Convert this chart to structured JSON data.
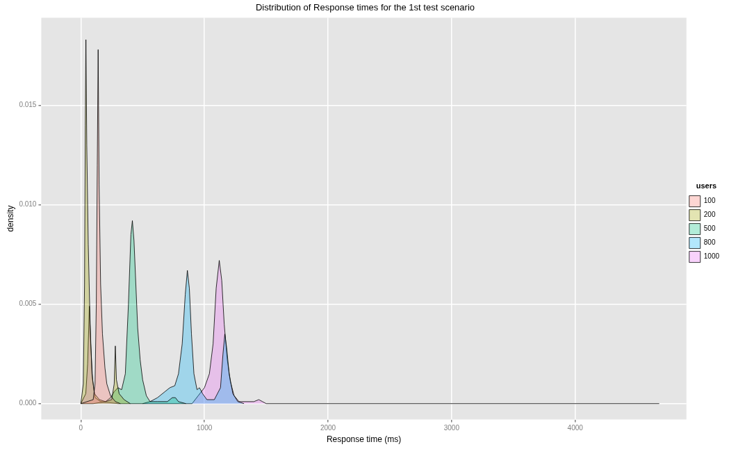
{
  "chart_data": {
    "type": "area",
    "title": "Distribution of Response times for the 1st test scenario",
    "xlabel": "Response time (ms)",
    "ylabel": "density",
    "legend_title": "users",
    "legend": "right",
    "xlim": [
      -320,
      4900
    ],
    "xticks": [
      0,
      1000,
      2000,
      3000,
      4000
    ],
    "ylim": [
      -0.0008,
      0.0194
    ],
    "yticks": [
      {
        "value": 0,
        "label": "0.000"
      },
      {
        "value": 0.005,
        "label": "0.005"
      },
      {
        "value": 0.01,
        "label": "0.010"
      },
      {
        "value": 0.015,
        "label": "0.015"
      }
    ],
    "grid": true,
    "series": [
      {
        "name": "100",
        "color": "#f8766d",
        "x": [
          0,
          100,
          115,
          125,
          133,
          140,
          148,
          160,
          175,
          195,
          210,
          240,
          280,
          320
        ],
        "values": [
          0,
          0.0002,
          0.001,
          0.005,
          0.012,
          0.0178,
          0.011,
          0.006,
          0.0035,
          0.0018,
          0.001,
          0.0004,
          0.0001,
          0
        ]
      },
      {
        "name": "200",
        "color": "#a3a500",
        "x": [
          0,
          20,
          30,
          36,
          41,
          48,
          60,
          75,
          90,
          110,
          150,
          200,
          250,
          270,
          279,
          288,
          310,
          350,
          400
        ],
        "values": [
          0,
          0.001,
          0.006,
          0.014,
          0.0183,
          0.013,
          0.008,
          0.004,
          0.0015,
          0.0005,
          0.0002,
          0.0001,
          0.0002,
          0.001,
          0.0029,
          0.0012,
          0.0005,
          0.0002,
          0
        ]
      },
      {
        "name": "500",
        "color": "#00bf7d",
        "x": [
          0,
          100,
          200,
          240,
          270,
          300,
          330,
          360,
          385,
          405,
          417,
          430,
          445,
          460,
          480,
          500,
          530,
          560,
          620,
          700,
          740,
          765,
          790,
          850
        ],
        "values": [
          0,
          0,
          0.0001,
          0.0003,
          0.0006,
          0.0008,
          0.0007,
          0.0015,
          0.005,
          0.0085,
          0.0092,
          0.0082,
          0.006,
          0.0038,
          0.0022,
          0.0012,
          0.0004,
          0.0001,
          0.0001,
          0.0001,
          0.0003,
          0.0003,
          0.0001,
          0
        ]
      },
      {
        "name": "800",
        "color": "#00b0f6",
        "x": [
          500,
          560,
          620,
          680,
          720,
          760,
          790,
          820,
          845,
          862,
          878,
          895,
          915,
          940,
          960,
          985,
          1020,
          1080,
          1130,
          1150,
          1165,
          1180,
          1200,
          1230,
          1270,
          1320
        ],
        "values": [
          0,
          0.0001,
          0.0003,
          0.0006,
          0.0008,
          0.0009,
          0.0015,
          0.003,
          0.0055,
          0.0067,
          0.0058,
          0.0035,
          0.0015,
          0.0007,
          0.0008,
          0.0005,
          0.0002,
          0.0002,
          0.0008,
          0.0025,
          0.0035,
          0.0028,
          0.0015,
          0.0005,
          0.0001,
          0
        ]
      },
      {
        "name": "1000",
        "color": "#e76bf3",
        "x": [
          0,
          40,
          55,
          69,
          80,
          95,
          115,
          160,
          300,
          900,
          950,
          1000,
          1040,
          1070,
          1095,
          1120,
          1140,
          1160,
          1185,
          1210,
          1240,
          1280,
          1400,
          1440,
          1470,
          1500,
          4680
        ],
        "values": [
          0,
          0.0005,
          0.002,
          0.0049,
          0.003,
          0.0012,
          0.0003,
          0.0001,
          0,
          0,
          0.0004,
          0.0008,
          0.0015,
          0.003,
          0.0058,
          0.0072,
          0.0062,
          0.004,
          0.0022,
          0.0011,
          0.0004,
          0.0001,
          0.0001,
          0.0002,
          0.0001,
          0,
          0
        ]
      }
    ]
  }
}
